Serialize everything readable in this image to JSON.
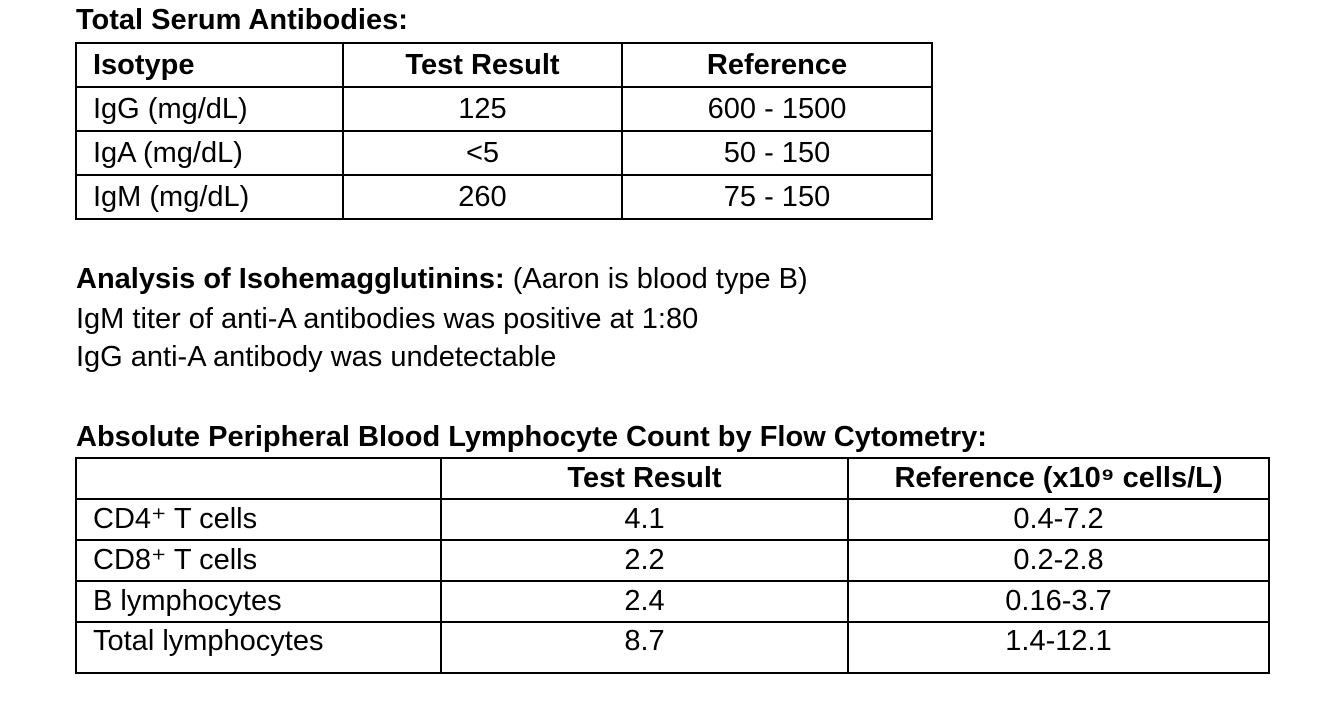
{
  "serum": {
    "title": "Total Serum Antibodies:",
    "headers": [
      "Isotype",
      "Test Result",
      "Reference"
    ],
    "rows": [
      [
        "IgG (mg/dL)",
        "125",
        "600 - 1500"
      ],
      [
        "IgA (mg/dL)",
        "<5",
        "50 - 150"
      ],
      [
        "IgM (mg/dL)",
        "260",
        "75 - 150"
      ]
    ]
  },
  "isohemagglutinins": {
    "title": "Analysis of Isohemagglutinins:",
    "note": "(Aaron is blood type B)",
    "lines": [
      "IgM titer of anti-A antibodies was positive at 1:80",
      "IgG anti-A antibody was undetectable"
    ]
  },
  "lymphocytes": {
    "title": "Absolute Peripheral Blood Lymphocyte Count by Flow Cytometry:",
    "headers": [
      "Test Result",
      "Reference (x10⁹ cells/L)"
    ],
    "rows": [
      [
        "CD4⁺ T cells",
        "4.1",
        "0.4-7.2"
      ],
      [
        "CD8⁺ T cells",
        "2.2",
        "0.2-2.8"
      ],
      [
        "B lymphocytes",
        "2.4",
        "0.16-3.7"
      ],
      [
        "Total lymphocytes",
        "8.7",
        "1.4-12.1"
      ]
    ]
  }
}
